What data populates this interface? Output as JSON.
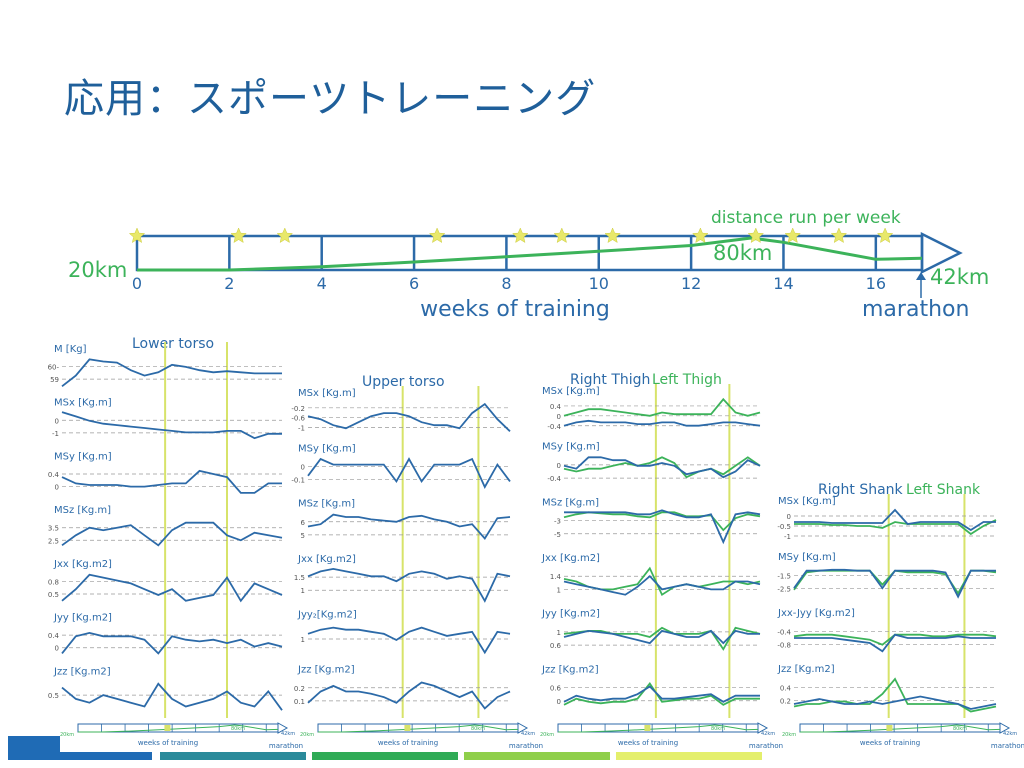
{
  "title": "応用：スポーツトレーニング",
  "colors": {
    "title": "#1f5f9a",
    "blue": "#2c6aa8",
    "green": "#3cb35a",
    "lime": "#d7e36a",
    "star": "#e8e86a",
    "dash": "#999999"
  },
  "timeline": {
    "start_label": "20km",
    "end_label": "42km",
    "mid_label": "80km",
    "top_label": "distance run per week",
    "axis_label": "weeks of training",
    "end_event": "marathon",
    "ticks": [
      "0",
      "2",
      "4",
      "6",
      "8",
      "10",
      "12",
      "14",
      "16"
    ],
    "weeks_max": 17,
    "distance_km": [
      [
        0,
        20
      ],
      [
        2,
        20
      ],
      [
        4,
        26
      ],
      [
        6,
        35
      ],
      [
        8,
        45
      ],
      [
        10,
        55
      ],
      [
        12,
        66
      ],
      [
        13.3,
        80
      ],
      [
        14,
        72
      ],
      [
        16,
        40
      ],
      [
        17,
        42
      ]
    ],
    "star_weeks": [
      0,
      2.2,
      3.2,
      6.5,
      8.3,
      9.2,
      10.3,
      12.2,
      13.4,
      14.2,
      15.2,
      16.2
    ],
    "footer_label": "weeks of training",
    "mini_start": "20km",
    "mini_mid": "80km",
    "mini_end": "42km",
    "mini_event": "marathon"
  },
  "chart_data": [
    {
      "type": "line",
      "title": "Lower torso",
      "x_weeks": [
        0,
        1,
        2,
        3,
        4,
        5,
        6,
        7,
        8,
        9,
        10,
        11,
        12,
        13,
        14,
        15,
        16
      ],
      "markers_weeks": [
        7.5,
        12
      ],
      "subplots": [
        {
          "label": "M [Kg]",
          "ticks": [
            "60-",
            "59"
          ],
          "ylim": [
            58,
            61.5
          ],
          "blue": [
            58.5,
            59.5,
            61,
            60.8,
            60.7,
            60,
            59.5,
            59.8,
            60.5,
            60.3,
            60,
            59.8,
            59.9,
            59.8,
            59.7,
            59.7,
            59.7
          ]
        },
        {
          "label": "MSx [Kg.m]",
          "ticks": [
            "0",
            "-1"
          ],
          "ylim": [
            -2,
            0.6
          ],
          "blue": [
            0.3,
            0,
            -0.3,
            -0.5,
            -0.6,
            -0.7,
            -0.8,
            -0.9,
            -1,
            -1.1,
            -1.1,
            -1.1,
            -1,
            -1,
            -1.5,
            -1.2,
            -1.2
          ]
        },
        {
          "label": "MSy [Kg.m]",
          "ticks": [
            "0.4",
            "0"
          ],
          "ylim": [
            -0.4,
            0.8
          ],
          "blue": [
            0.3,
            0.1,
            0.05,
            0.05,
            0.05,
            0,
            0,
            0.05,
            0.1,
            0.1,
            0.5,
            0.4,
            0.3,
            -0.2,
            -0.2,
            0.1,
            0.1
          ]
        },
        {
          "label": "MSz [Kg.m]",
          "ticks": [
            "3.5",
            "2.5"
          ],
          "ylim": [
            2.3,
            3.8
          ],
          "blue": [
            2.6,
            3,
            3.3,
            3.2,
            3.3,
            3.4,
            3,
            2.6,
            3.2,
            3.5,
            3.5,
            3.5,
            3,
            2.8,
            3.1,
            3,
            2.9
          ]
        },
        {
          "label": "Jxx [Kg.m2]",
          "ticks": [
            "0.8",
            "0.5"
          ],
          "ylim": [
            0.4,
            1.05
          ],
          "blue": [
            0.5,
            0.7,
            0.95,
            0.9,
            0.85,
            0.8,
            0.7,
            0.6,
            0.7,
            0.5,
            0.55,
            0.6,
            0.9,
            0.5,
            0.8,
            0.7,
            0.6
          ]
        },
        {
          "label": "Jyy [Kg.m2]",
          "ticks": [
            "0.4",
            "0"
          ],
          "ylim": [
            -0.2,
            0.9
          ],
          "blue": [
            0,
            0.5,
            0.6,
            0.5,
            0.5,
            0.5,
            0.4,
            0,
            0.5,
            0.4,
            0.35,
            0.4,
            0.3,
            0.4,
            0.2,
            0.3,
            0.2
          ]
        },
        {
          "label": "Jzz [Kg.m2]",
          "ticks": [
            "0.5"
          ],
          "ylim": [
            0.2,
            1.2
          ],
          "blue": [
            0.9,
            0.6,
            0.5,
            0.7,
            0.6,
            0.5,
            0.4,
            1,
            0.6,
            0.4,
            0.5,
            0.6,
            0.8,
            0.5,
            0.4,
            0.8,
            0.3
          ]
        }
      ]
    },
    {
      "type": "line",
      "title": "Upper torso",
      "x_weeks": [
        0,
        1,
        2,
        3,
        4,
        5,
        6,
        7,
        8,
        9,
        10,
        11,
        12,
        13,
        14,
        15,
        16
      ],
      "markers_weeks": [
        7.5,
        13.5
      ],
      "subplots": [
        {
          "label": "MSx [Kg.m]",
          "ticks": [
            "-0.2",
            "-0.6",
            "-1"
          ],
          "ylim": [
            -1.2,
            0.1
          ],
          "blue": [
            -0.5,
            -0.6,
            -0.8,
            -0.9,
            -0.7,
            -0.5,
            -0.4,
            -0.4,
            -0.5,
            -0.7,
            -0.8,
            -0.8,
            -0.9,
            -0.4,
            -0.1,
            -0.6,
            -1
          ]
        },
        {
          "label": "MSy [Kg.m]",
          "ticks": [
            "0",
            "-0.1"
          ],
          "ylim": [
            -0.3,
            0.4
          ],
          "blue": [
            0,
            0.3,
            0.2,
            0.2,
            0.2,
            0.2,
            0.2,
            -0.1,
            0.3,
            -0.1,
            0.2,
            0.2,
            0.2,
            0.3,
            -0.2,
            0.2,
            -0.1
          ]
        },
        {
          "label": "MSz [Kg.m]",
          "ticks": [
            "6",
            "5"
          ],
          "ylim": [
            4.2,
            7.5
          ],
          "blue": [
            6,
            6.2,
            7,
            6.8,
            6.8,
            6.6,
            6.5,
            6.4,
            6.8,
            6.9,
            6.6,
            6.4,
            6,
            6.2,
            5,
            6.7,
            6.8
          ]
        },
        {
          "label": "Jxx [Kg.m2]",
          "ticks": [
            "1.5",
            "1"
          ],
          "ylim": [
            0.4,
            2
          ],
          "blue": [
            1.5,
            1.7,
            1.8,
            1.7,
            1.6,
            1.5,
            1.5,
            1.3,
            1.6,
            1.7,
            1.6,
            1.4,
            1.5,
            1.4,
            0.5,
            1.6,
            1.5
          ]
        },
        {
          "label": "Jyy₂[Kg.m2]",
          "ticks": [
            "1"
          ],
          "ylim": [
            0.3,
            2.2
          ],
          "blue": [
            1.5,
            1.7,
            1.8,
            1.7,
            1.7,
            1.6,
            1.5,
            1.2,
            1.6,
            1.8,
            1.6,
            1.4,
            1.5,
            1.6,
            0.6,
            1.6,
            1.5
          ]
        },
        {
          "label": "Jzz [Kg.m2]",
          "ticks": [
            "0.2",
            "0.1"
          ],
          "ylim": [
            0,
            0.35
          ],
          "blue": [
            0.1,
            0.2,
            0.25,
            0.2,
            0.2,
            0.18,
            0.15,
            0.1,
            0.2,
            0.28,
            0.25,
            0.2,
            0.15,
            0.2,
            0.05,
            0.15,
            0.2
          ]
        }
      ]
    },
    {
      "type": "line",
      "title": "Right Thigh",
      "title2": "Left Thigh",
      "x_weeks": [
        0,
        1,
        2,
        3,
        4,
        5,
        6,
        7,
        8,
        9,
        10,
        11,
        12,
        13,
        14,
        15,
        16
      ],
      "markers_weeks": [
        7.5,
        13.5
      ],
      "subplots": [
        {
          "label": "MSx [Kg.m]",
          "ticks": [
            "0.4",
            "0",
            "-0.4"
          ],
          "ylim": [
            -0.6,
            0.6
          ],
          "blue": [
            -0.3,
            -0.2,
            -0.15,
            -0.2,
            -0.2,
            -0.2,
            -0.25,
            -0.25,
            -0.2,
            -0.2,
            -0.3,
            -0.3,
            -0.25,
            -0.2,
            -0.2,
            -0.25,
            -0.3
          ],
          "green": [
            0,
            0.1,
            0.2,
            0.2,
            0.15,
            0.1,
            0.05,
            0,
            0.1,
            0.05,
            0.05,
            0.05,
            0.05,
            0.5,
            0.1,
            0,
            0.1
          ]
        },
        {
          "label": "MSy [Kg.m]",
          "ticks": [
            "0",
            "-0.4"
          ],
          "ylim": [
            -0.9,
            0.5
          ],
          "blue": [
            0,
            -0.1,
            0.3,
            0.3,
            0.2,
            0.2,
            0,
            0,
            0.1,
            0,
            -0.3,
            -0.2,
            -0.1,
            -0.4,
            -0.2,
            0.2,
            0
          ],
          "green": [
            -0.1,
            -0.2,
            -0.1,
            -0.1,
            0,
            0.1,
            0,
            0.1,
            0.3,
            0.1,
            -0.4,
            -0.2,
            -0.1,
            -0.3,
            0,
            0.3,
            0
          ]
        },
        {
          "label": "MSz [Kg.m]",
          "ticks": [
            "-3",
            "-5"
          ],
          "ylim": [
            -6.5,
            -2.5
          ],
          "blue": [
            -3,
            -3,
            -3,
            -3,
            -3,
            -3,
            -3.2,
            -3.2,
            -2.8,
            -3.2,
            -3.5,
            -3.5,
            -3.2,
            -6,
            -3.2,
            -3,
            -3.2
          ],
          "green": [
            -3.5,
            -3.2,
            -3,
            -3.1,
            -3.2,
            -3.2,
            -3.4,
            -3.5,
            -3,
            -3,
            -3.4,
            -3.4,
            -3.3,
            -4.8,
            -3.6,
            -3.2,
            -3.4
          ]
        },
        {
          "label": "Jxx [Kg.m2]",
          "ticks": [
            "1.4",
            "1"
          ],
          "ylim": [
            0.7,
            2.2
          ],
          "blue": [
            1.5,
            1.4,
            1.3,
            1.2,
            1.1,
            1,
            1.3,
            1.7,
            1.2,
            1.3,
            1.4,
            1.3,
            1.2,
            1.2,
            1.5,
            1.5,
            1.4
          ],
          "green": [
            1.6,
            1.5,
            1.3,
            1.2,
            1.2,
            1.3,
            1.4,
            2,
            1,
            1.3,
            1.4,
            1.3,
            1.4,
            1.5,
            1.5,
            1.4,
            1.5
          ]
        },
        {
          "label": "Jyy [Kg.m2]",
          "ticks": [
            "1",
            "0.6"
          ],
          "ylim": [
            0.3,
            1.6
          ],
          "blue": [
            1,
            1.1,
            1.2,
            1.15,
            1.1,
            1,
            0.9,
            0.8,
            1.2,
            1.1,
            1,
            1,
            1.2,
            0.8,
            1.2,
            1.1,
            1.1
          ],
          "green": [
            1.1,
            1.15,
            1.2,
            1.2,
            1.1,
            1.1,
            1.1,
            1,
            1.3,
            1.1,
            1.1,
            1.1,
            1.2,
            0.6,
            1.3,
            1.2,
            1.1
          ]
        },
        {
          "label": "Jzz [Kg.m2]",
          "ticks": [
            "0.6",
            "0"
          ],
          "ylim": [
            -0.3,
            1
          ],
          "blue": [
            0.1,
            0.3,
            0.2,
            0.15,
            0.2,
            0.2,
            0.35,
            0.6,
            0.2,
            0.2,
            0.25,
            0.3,
            0.35,
            0.1,
            0.3,
            0.3,
            0.3
          ],
          "green": [
            0,
            0.2,
            0.1,
            0.05,
            0.1,
            0.1,
            0.2,
            0.7,
            0.1,
            0.15,
            0.2,
            0.2,
            0.3,
            0,
            0.2,
            0.2,
            0.2
          ]
        }
      ]
    },
    {
      "type": "line",
      "title": "Right Shank",
      "title2": "Left Shank",
      "x_weeks": [
        0,
        1,
        2,
        3,
        4,
        5,
        6,
        7,
        8,
        9,
        10,
        11,
        12,
        13,
        14,
        15,
        16
      ],
      "markers_weeks": [
        7.5,
        13.5
      ],
      "subplots": [
        {
          "label": "MSx [Kg.m]",
          "ticks": [
            "0",
            "-0.5",
            "-1"
          ],
          "ylim": [
            -1.2,
            0.8
          ],
          "blue": [
            0,
            0,
            0,
            -0.05,
            -0.05,
            -0.05,
            -0.05,
            -0.05,
            0.6,
            -0.1,
            0,
            0,
            0,
            0,
            -0.4,
            0,
            0
          ],
          "green": [
            -0.1,
            -0.1,
            -0.1,
            -0.15,
            -0.15,
            -0.2,
            -0.2,
            -0.3,
            0,
            -0.1,
            -0.1,
            -0.1,
            -0.1,
            -0.1,
            -0.6,
            -0.2,
            0.1
          ]
        },
        {
          "label": "MSy [Kg.m]",
          "ticks": [
            "-1.5",
            "-2.5"
          ],
          "ylim": [
            -3.3,
            -1
          ],
          "blue": [
            -2.5,
            -1.5,
            -1.5,
            -1.45,
            -1.45,
            -1.5,
            -1.5,
            -2.5,
            -1.5,
            -1.5,
            -1.5,
            -1.5,
            -1.6,
            -3,
            -1.5,
            -1.5,
            -1.5
          ],
          "green": [
            -2.6,
            -1.6,
            -1.5,
            -1.5,
            -1.5,
            -1.5,
            -1.5,
            -2.3,
            -1.5,
            -1.6,
            -1.6,
            -1.6,
            -1.7,
            -2.8,
            -1.5,
            -1.5,
            -1.6
          ]
        },
        {
          "label": "Jxx-Jyy [Kg.m2]",
          "ticks": [
            "-0.4",
            "-0.8"
          ],
          "ylim": [
            -1,
            0.2
          ],
          "blue": [
            -0.4,
            -0.4,
            -0.4,
            -0.4,
            -0.45,
            -0.5,
            -0.55,
            -0.8,
            -0.3,
            -0.4,
            -0.4,
            -0.4,
            -0.4,
            -0.35,
            -0.4,
            -0.4,
            -0.4
          ],
          "green": [
            -0.35,
            -0.3,
            -0.3,
            -0.3,
            -0.35,
            -0.4,
            -0.45,
            -0.6,
            -0.3,
            -0.3,
            -0.3,
            -0.35,
            -0.35,
            -0.3,
            -0.3,
            -0.3,
            -0.35
          ]
        },
        {
          "label": "Jzz [Kg.m2]",
          "ticks": [
            "0.4",
            "0.2"
          ],
          "ylim": [
            0,
            0.8
          ],
          "blue": [
            0.2,
            0.25,
            0.3,
            0.25,
            0.2,
            0.2,
            0.25,
            0.2,
            0.25,
            0.3,
            0.35,
            0.3,
            0.25,
            0.2,
            0.1,
            0.15,
            0.2
          ],
          "green": [
            0.15,
            0.2,
            0.2,
            0.25,
            0.25,
            0.2,
            0.2,
            0.4,
            0.7,
            0.2,
            0.2,
            0.2,
            0.2,
            0.2,
            0.05,
            0.1,
            0.15
          ]
        }
      ]
    }
  ]
}
